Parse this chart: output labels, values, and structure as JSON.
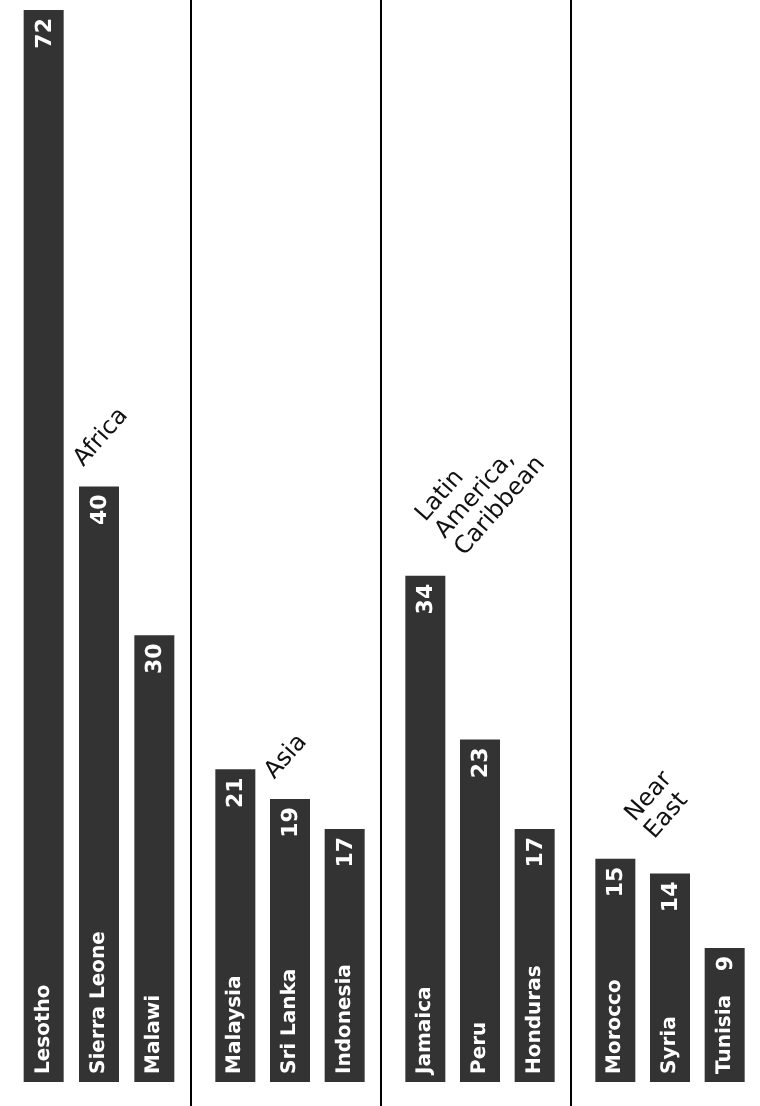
{
  "chart_data": [
    {
      "type": "bar",
      "title": "Africa",
      "categories": [
        "Lesotho",
        "Sierra Leone",
        "Malawi"
      ],
      "values": [
        72,
        40,
        30
      ],
      "color": "#333333",
      "data_labels": true
    },
    {
      "type": "bar",
      "title": "Asia",
      "categories": [
        "Malaysia",
        "Sri Lanka",
        "Indonesia"
      ],
      "values": [
        21,
        19,
        17
      ],
      "color": "#333333",
      "data_labels": true
    },
    {
      "type": "bar",
      "title": "Latin\nAmerica,\nCaribbean",
      "categories": [
        "Jamaica",
        "Peru",
        "Honduras"
      ],
      "values": [
        34,
        23,
        17
      ],
      "color": "#333333",
      "data_labels": true
    },
    {
      "type": "bar",
      "title": "Near\nEast",
      "categories": [
        "Morocco",
        "Syria",
        "Tunisia"
      ],
      "values": [
        15,
        14,
        9
      ],
      "color": "#333333",
      "data_labels": true
    }
  ]
}
